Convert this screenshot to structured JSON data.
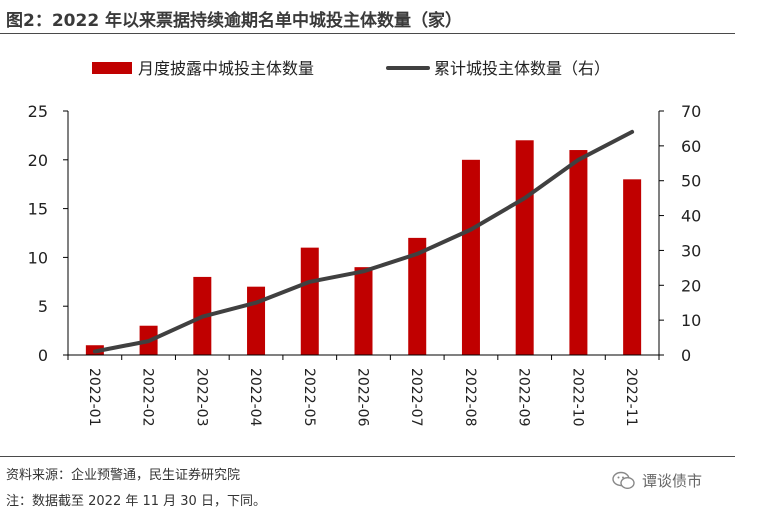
{
  "title": "图2：2022 年以来票据持续逾期名单中城投主体数量（家）",
  "source": "资料来源：企业预警通，民生证券研究院",
  "footnote": "注：数据截至 2022 年 11 月 30 日，下同。",
  "watermark": {
    "icon": "wechat-icon",
    "name": "谭谈债市"
  },
  "colors": {
    "bar": "#c00000",
    "line": "#404040",
    "axis": "#000000",
    "text": "#222222"
  },
  "chart_data": {
    "type": "bar",
    "title": "",
    "categories": [
      "2022-01",
      "2022-02",
      "2022-03",
      "2022-04",
      "2022-05",
      "2022-06",
      "2022-07",
      "2022-08",
      "2022-09",
      "2022-10",
      "2022-11"
    ],
    "series": [
      {
        "name": "月度披露中城投主体数量",
        "type": "bar",
        "axis": "left",
        "values": [
          1,
          3,
          8,
          7,
          11,
          9,
          12,
          20,
          22,
          21,
          18
        ]
      },
      {
        "name": "累计城投主体数量（右）",
        "type": "line",
        "axis": "right",
        "values": [
          1,
          4,
          11,
          15,
          21,
          24,
          29,
          36,
          45,
          56,
          64
        ]
      }
    ],
    "y_left": {
      "lim": [
        0,
        25
      ],
      "ticks": [
        0,
        5,
        10,
        15,
        20,
        25
      ]
    },
    "y_right": {
      "lim": [
        0,
        70
      ],
      "ticks": [
        0,
        10,
        20,
        30,
        40,
        50,
        60,
        70
      ]
    },
    "legend_position": "top-center",
    "grid": false
  }
}
